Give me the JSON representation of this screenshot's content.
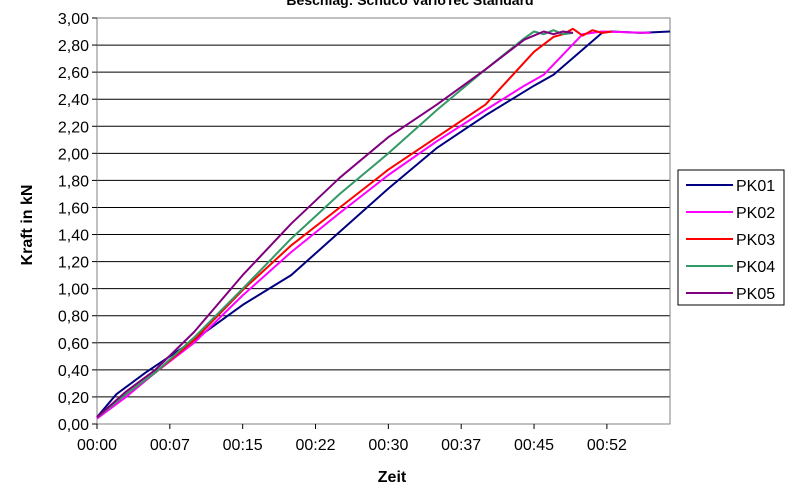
{
  "chart_data": {
    "type": "line",
    "title": "Beschlag: Schüco VarioTec Standard",
    "xlabel": "Zeit",
    "ylabel": "Kraft in kN",
    "x_tick_labels": [
      "00:00",
      "00:07",
      "00:15",
      "00:22",
      "00:30",
      "00:37",
      "00:45",
      "00:52"
    ],
    "y_tick_labels": [
      "0,00",
      "0,20",
      "0,40",
      "0,60",
      "0,80",
      "1,00",
      "1,20",
      "1,40",
      "1,60",
      "1,80",
      "2,00",
      "2,20",
      "2,40",
      "2,60",
      "2,80",
      "3,00"
    ],
    "xlim": [
      0,
      59
    ],
    "ylim": [
      0,
      3.0
    ],
    "grid": "horizontal",
    "legend_position": "right",
    "series": [
      {
        "name": "PK01",
        "color": "#000080",
        "x": [
          0,
          2,
          5,
          10,
          15,
          20,
          25,
          30,
          35,
          40,
          45,
          47,
          52,
          53,
          56,
          59
        ],
        "y": [
          0.05,
          0.22,
          0.38,
          0.62,
          0.88,
          1.1,
          1.42,
          1.74,
          2.04,
          2.28,
          2.5,
          2.58,
          2.89,
          2.9,
          2.89,
          2.9
        ]
      },
      {
        "name": "PK02",
        "color": "#ff00ff",
        "x": [
          0,
          3,
          6,
          10,
          15,
          20,
          25,
          30,
          35,
          40,
          44,
          46,
          50,
          52,
          57
        ],
        "y": [
          0.04,
          0.2,
          0.38,
          0.6,
          0.95,
          1.27,
          1.56,
          1.84,
          2.09,
          2.32,
          2.5,
          2.58,
          2.88,
          2.9,
          2.89
        ]
      },
      {
        "name": "PK03",
        "color": "#ff0000",
        "x": [
          0,
          3,
          6,
          10,
          15,
          20,
          25,
          30,
          35,
          40,
          45,
          47,
          48,
          49,
          50,
          51,
          52,
          53
        ],
        "y": [
          0.05,
          0.22,
          0.38,
          0.62,
          0.99,
          1.32,
          1.6,
          1.88,
          2.12,
          2.36,
          2.75,
          2.86,
          2.88,
          2.92,
          2.87,
          2.91,
          2.89,
          2.9
        ]
      },
      {
        "name": "PK04",
        "color": "#339966",
        "x": [
          0,
          3,
          6,
          10,
          15,
          20,
          25,
          30,
          35,
          40,
          44,
          45,
          46,
          47,
          48,
          49
        ],
        "y": [
          0.05,
          0.22,
          0.38,
          0.64,
          1.0,
          1.37,
          1.7,
          2.0,
          2.32,
          2.62,
          2.85,
          2.9,
          2.88,
          2.91,
          2.88,
          2.89
        ]
      },
      {
        "name": "PK05",
        "color": "#800080",
        "x": [
          0,
          3,
          6,
          10,
          15,
          20,
          25,
          30,
          35,
          40,
          44,
          45,
          46,
          47,
          48,
          49
        ],
        "y": [
          0.05,
          0.24,
          0.4,
          0.68,
          1.1,
          1.48,
          1.82,
          2.12,
          2.36,
          2.62,
          2.84,
          2.87,
          2.9,
          2.88,
          2.9,
          2.89
        ]
      }
    ]
  }
}
